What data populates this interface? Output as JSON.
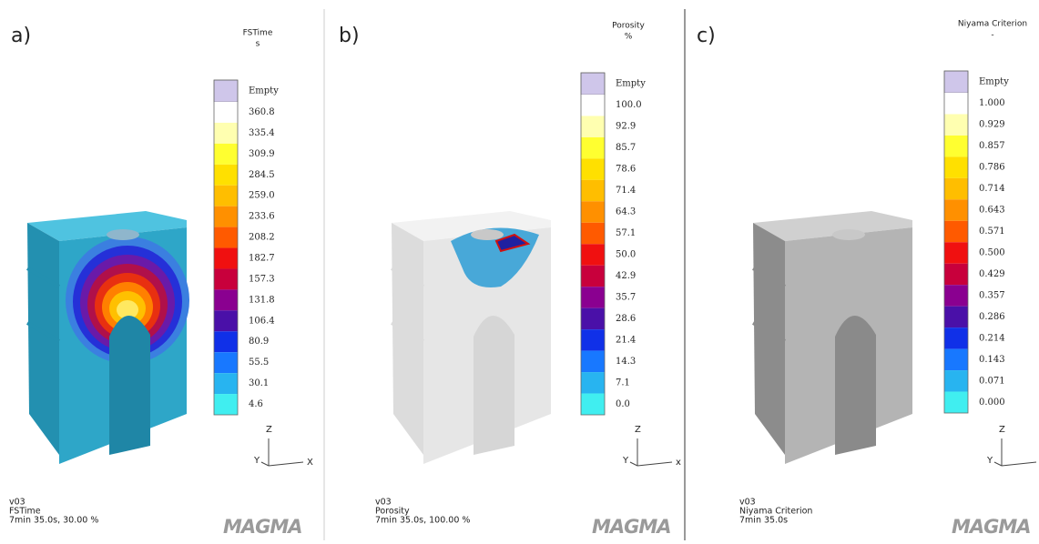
{
  "panels": [
    {
      "label": "a)",
      "legend": {
        "title": "FSTime",
        "unit": "s",
        "empty": "Empty",
        "ticks": [
          "360.8",
          "335.4",
          "309.9",
          "284.5",
          "259.0",
          "233.6",
          "208.2",
          "182.7",
          "157.3",
          "131.8",
          "106.4",
          "80.9",
          "55.5",
          "30.1",
          "4.6"
        ]
      },
      "axes": {
        "z": "Z",
        "y": "Y",
        "x": "X"
      },
      "footer": [
        "v03",
        "FSTime",
        "7min 35.0s, 30.00 %"
      ],
      "logo": "MAGMA"
    },
    {
      "label": "b)",
      "legend": {
        "title": "Porosity",
        "unit": "%",
        "empty": "Empty",
        "ticks": [
          "100.0",
          "92.9",
          "85.7",
          "78.6",
          "71.4",
          "64.3",
          "57.1",
          "50.0",
          "42.9",
          "35.7",
          "28.6",
          "21.4",
          "14.3",
          "7.1",
          "0.0"
        ]
      },
      "axes": {
        "z": "Z",
        "y": "Y",
        "x": "x"
      },
      "footer": [
        "v03",
        "Porosity",
        "7min 35.0s, 100.00 %"
      ],
      "logo": "MAGMA"
    },
    {
      "label": "c)",
      "legend": {
        "title": "Niyama Criterion",
        "unit": "-",
        "empty": "Empty",
        "ticks": [
          "1.000",
          "0.929",
          "0.857",
          "0.786",
          "0.714",
          "0.643",
          "0.571",
          "0.500",
          "0.429",
          "0.357",
          "0.286",
          "0.214",
          "0.143",
          "0.071",
          "0.000"
        ]
      },
      "axes": {
        "z": "Z",
        "y": "Y"
      },
      "footer": [
        "v03",
        "Niyama Criterion",
        "7min 35.0s"
      ],
      "logo": "MAGMA"
    }
  ]
}
